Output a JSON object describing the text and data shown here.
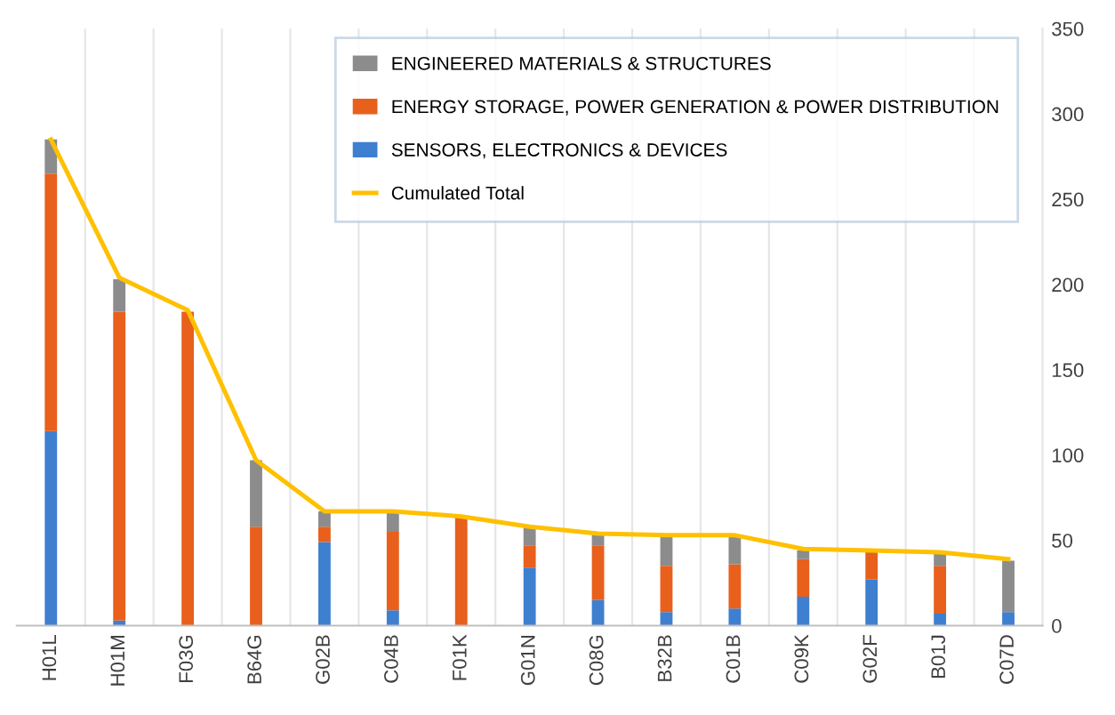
{
  "chart_data": {
    "type": "bar",
    "stacked": true,
    "categories": [
      "H01L",
      "H01M",
      "F03G",
      "B64G",
      "G02B",
      "C04B",
      "F01K",
      "G01N",
      "C08G",
      "B32B",
      "C01B",
      "C09K",
      "G02F",
      "B01J",
      "C07D"
    ],
    "series": [
      {
        "name": "SENSORS, ELECTRONICS & DEVICES",
        "color": "#3f7fd0",
        "values": [
          114,
          3,
          0,
          0,
          49,
          9,
          0,
          34,
          15,
          8,
          10,
          17,
          27,
          7,
          8
        ]
      },
      {
        "name": "ENERGY STORAGE, POWER GENERATION & POWER DISTRIBUTION",
        "color": "#e8601c",
        "values": [
          151,
          181,
          184,
          58,
          9,
          46,
          64,
          13,
          32,
          27,
          26,
          22,
          17,
          28,
          0
        ]
      },
      {
        "name": "ENGINEERED MATERIALS & STRUCTURES",
        "color": "#8c8c8c",
        "values": [
          20,
          19,
          0,
          39,
          9,
          11,
          0,
          11,
          7,
          18,
          17,
          5,
          0,
          8,
          30
        ]
      },
      {
        "name": "Cumulated Total",
        "type": "line",
        "color": "#ffc000",
        "values": [
          285,
          204,
          185,
          97,
          67,
          67,
          64,
          58,
          54,
          53,
          53,
          45,
          44,
          43,
          39
        ]
      }
    ],
    "ylim": [
      0,
      350
    ],
    "yticks": [
      0,
      50,
      100,
      150,
      200,
      250,
      300,
      350
    ],
    "grid": "x",
    "legend": "top right",
    "marker": "none",
    "line_style": "solid"
  }
}
